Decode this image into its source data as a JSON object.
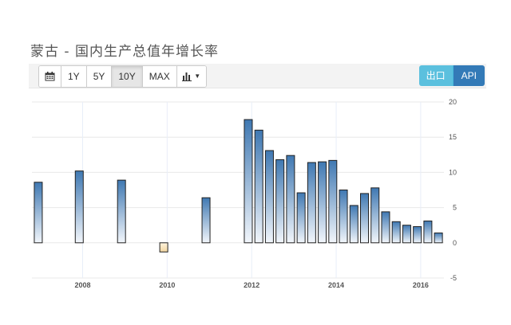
{
  "page": {
    "title": "蒙古 - 国内生产总值年增长率"
  },
  "toolbar": {
    "ranges": [
      {
        "label": "1Y",
        "active": false
      },
      {
        "label": "5Y",
        "active": false
      },
      {
        "label": "10Y",
        "active": true
      },
      {
        "label": "MAX",
        "active": false
      }
    ],
    "export_label": "出口",
    "api_label": "API",
    "accent_export": "#5bc0de",
    "accent_api": "#337ab7"
  },
  "chart_data": {
    "type": "bar",
    "title": "",
    "xlabel": "",
    "ylabel": "",
    "ylim": [
      -5,
      20
    ],
    "yticks": [
      20,
      15,
      10,
      5,
      0,
      -5
    ],
    "xticks": [
      {
        "label": "2008",
        "t": 2008.0
      },
      {
        "label": "2010",
        "t": 2010.0
      },
      {
        "label": "2012",
        "t": 2012.0
      },
      {
        "label": "2014",
        "t": 2014.0
      },
      {
        "label": "2016",
        "t": 2016.0
      }
    ],
    "x_range": [
      2006.8,
      2016.55
    ],
    "grid": true,
    "legend": "none",
    "positive_color": "#3e7ab5",
    "negative_color": "#f5d9a8",
    "series": [
      {
        "points": [
          {
            "t": 2006.95,
            "value": 8.6
          },
          {
            "t": 2007.92,
            "value": 10.2
          },
          {
            "t": 2008.92,
            "value": 8.9
          },
          {
            "t": 2009.92,
            "value": -1.3
          },
          {
            "t": 2010.92,
            "value": 6.4
          },
          {
            "t": 2011.92,
            "value": 17.5
          },
          {
            "t": 2012.17,
            "value": 16.0
          },
          {
            "t": 2012.42,
            "value": 13.1
          },
          {
            "t": 2012.67,
            "value": 11.8
          },
          {
            "t": 2012.92,
            "value": 12.4
          },
          {
            "t": 2013.17,
            "value": 7.1
          },
          {
            "t": 2013.42,
            "value": 11.4
          },
          {
            "t": 2013.67,
            "value": 11.5
          },
          {
            "t": 2013.92,
            "value": 11.7
          },
          {
            "t": 2014.17,
            "value": 7.5
          },
          {
            "t": 2014.42,
            "value": 5.3
          },
          {
            "t": 2014.67,
            "value": 7.0
          },
          {
            "t": 2014.92,
            "value": 7.8
          },
          {
            "t": 2015.17,
            "value": 4.4
          },
          {
            "t": 2015.42,
            "value": 3.0
          },
          {
            "t": 2015.67,
            "value": 2.5
          },
          {
            "t": 2015.92,
            "value": 2.3
          },
          {
            "t": 2016.17,
            "value": 3.1
          },
          {
            "t": 2016.42,
            "value": 1.4
          }
        ]
      }
    ]
  }
}
